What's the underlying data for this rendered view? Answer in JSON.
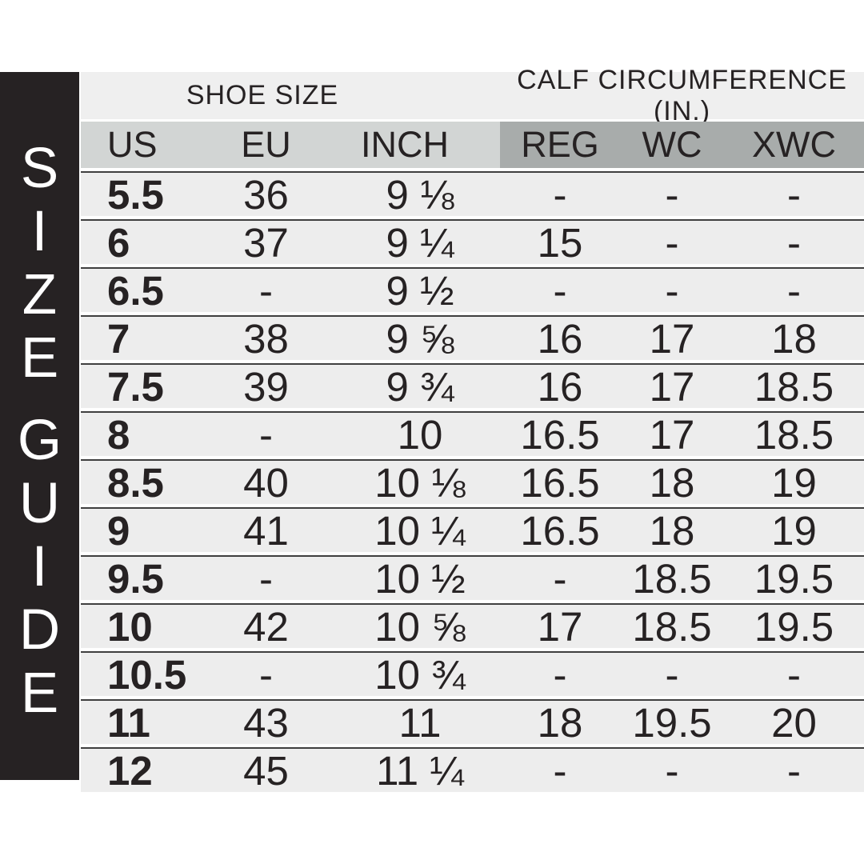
{
  "sidebar": {
    "title": "SIZE GUIDE",
    "words": [
      "SIZE",
      "GUIDE"
    ]
  },
  "table": {
    "group_headers": {
      "shoe": "SHOE SIZE",
      "calf": "CALF CIRCUMFERENCE (IN.)"
    },
    "columns": [
      {
        "key": "us",
        "label": "US",
        "group": "shoe"
      },
      {
        "key": "eu",
        "label": "EU",
        "group": "shoe"
      },
      {
        "key": "inch",
        "label": "INCH",
        "group": "shoe"
      },
      {
        "key": "reg",
        "label": "REG",
        "group": "calf"
      },
      {
        "key": "wc",
        "label": "WC",
        "group": "calf"
      },
      {
        "key": "xwc",
        "label": "XWC",
        "group": "calf"
      }
    ],
    "rows": [
      {
        "us": "5.5",
        "eu": "36",
        "inch": "9 ⅛",
        "reg": "-",
        "wc": "-",
        "xwc": "-"
      },
      {
        "us": "6",
        "eu": "37",
        "inch": "9 ¼",
        "reg": "15",
        "wc": "-",
        "xwc": "-"
      },
      {
        "us": "6.5",
        "eu": "-",
        "inch": "9 ½",
        "reg": "-",
        "wc": "-",
        "xwc": "-"
      },
      {
        "us": "7",
        "eu": "38",
        "inch": "9 ⅝",
        "reg": "16",
        "wc": "17",
        "xwc": "18"
      },
      {
        "us": "7.5",
        "eu": "39",
        "inch": "9 ¾",
        "reg": "16",
        "wc": "17",
        "xwc": "18.5"
      },
      {
        "us": "8",
        "eu": "-",
        "inch": "10",
        "reg": "16.5",
        "wc": "17",
        "xwc": "18.5"
      },
      {
        "us": "8.5",
        "eu": "40",
        "inch": "10 ⅛",
        "reg": "16.5",
        "wc": "18",
        "xwc": "19"
      },
      {
        "us": "9",
        "eu": "41",
        "inch": "10 ¼",
        "reg": "16.5",
        "wc": "18",
        "xwc": "19"
      },
      {
        "us": "9.5",
        "eu": "-",
        "inch": "10 ½",
        "reg": "-",
        "wc": "18.5",
        "xwc": "19.5"
      },
      {
        "us": "10",
        "eu": "42",
        "inch": "10 ⅝",
        "reg": "17",
        "wc": "18.5",
        "xwc": "19.5"
      },
      {
        "us": "10.5",
        "eu": "-",
        "inch": "10 ¾",
        "reg": "-",
        "wc": "-",
        "xwc": "-"
      },
      {
        "us": "11",
        "eu": "43",
        "inch": "11",
        "reg": "18",
        "wc": "19.5",
        "xwc": "20"
      },
      {
        "us": "12",
        "eu": "45",
        "inch": "11 ¼",
        "reg": "-",
        "wc": "-",
        "xwc": "-"
      }
    ]
  },
  "chart_data": {
    "type": "table",
    "title": "SIZE GUIDE",
    "column_groups": [
      {
        "label": "SHOE SIZE",
        "columns": [
          "US",
          "EU",
          "INCH"
        ]
      },
      {
        "label": "CALF CIRCUMFERENCE (IN.)",
        "columns": [
          "REG",
          "WC",
          "XWC"
        ]
      }
    ],
    "columns": [
      "US",
      "EU",
      "INCH",
      "REG",
      "WC",
      "XWC"
    ],
    "rows": [
      [
        "5.5",
        "36",
        "9 ⅛",
        "-",
        "-",
        "-"
      ],
      [
        "6",
        "37",
        "9 ¼",
        "15",
        "-",
        "-"
      ],
      [
        "6.5",
        "-",
        "9 ½",
        "-",
        "-",
        "-"
      ],
      [
        "7",
        "38",
        "9 ⅝",
        "16",
        "17",
        "18"
      ],
      [
        "7.5",
        "39",
        "9 ¾",
        "16",
        "17",
        "18.5"
      ],
      [
        "8",
        "-",
        "10",
        "16.5",
        "17",
        "18.5"
      ],
      [
        "8.5",
        "40",
        "10 ⅛",
        "16.5",
        "18",
        "19"
      ],
      [
        "9",
        "41",
        "10 ¼",
        "16.5",
        "18",
        "19"
      ],
      [
        "9.5",
        "-",
        "10 ½",
        "-",
        "18.5",
        "19.5"
      ],
      [
        "10",
        "42",
        "10 ⅝",
        "17",
        "18.5",
        "19.5"
      ],
      [
        "10.5",
        "-",
        "10 ¾",
        "-",
        "-",
        "-"
      ],
      [
        "11",
        "43",
        "11",
        "18",
        "19.5",
        "20"
      ],
      [
        "12",
        "45",
        "11 ¼",
        "-",
        "-",
        "-"
      ]
    ]
  },
  "colors": {
    "sidebar_bg": "#262223",
    "sidebar_text": "#ffffff",
    "header_strip_bg": "#efefef",
    "band_shoe_bg": "#d2d5d4",
    "band_calf_bg": "#a8acab",
    "row_bg": "#ededed",
    "separator_line": "#3f3f3f",
    "text": "#262223",
    "page_bg": "#ffffff"
  }
}
